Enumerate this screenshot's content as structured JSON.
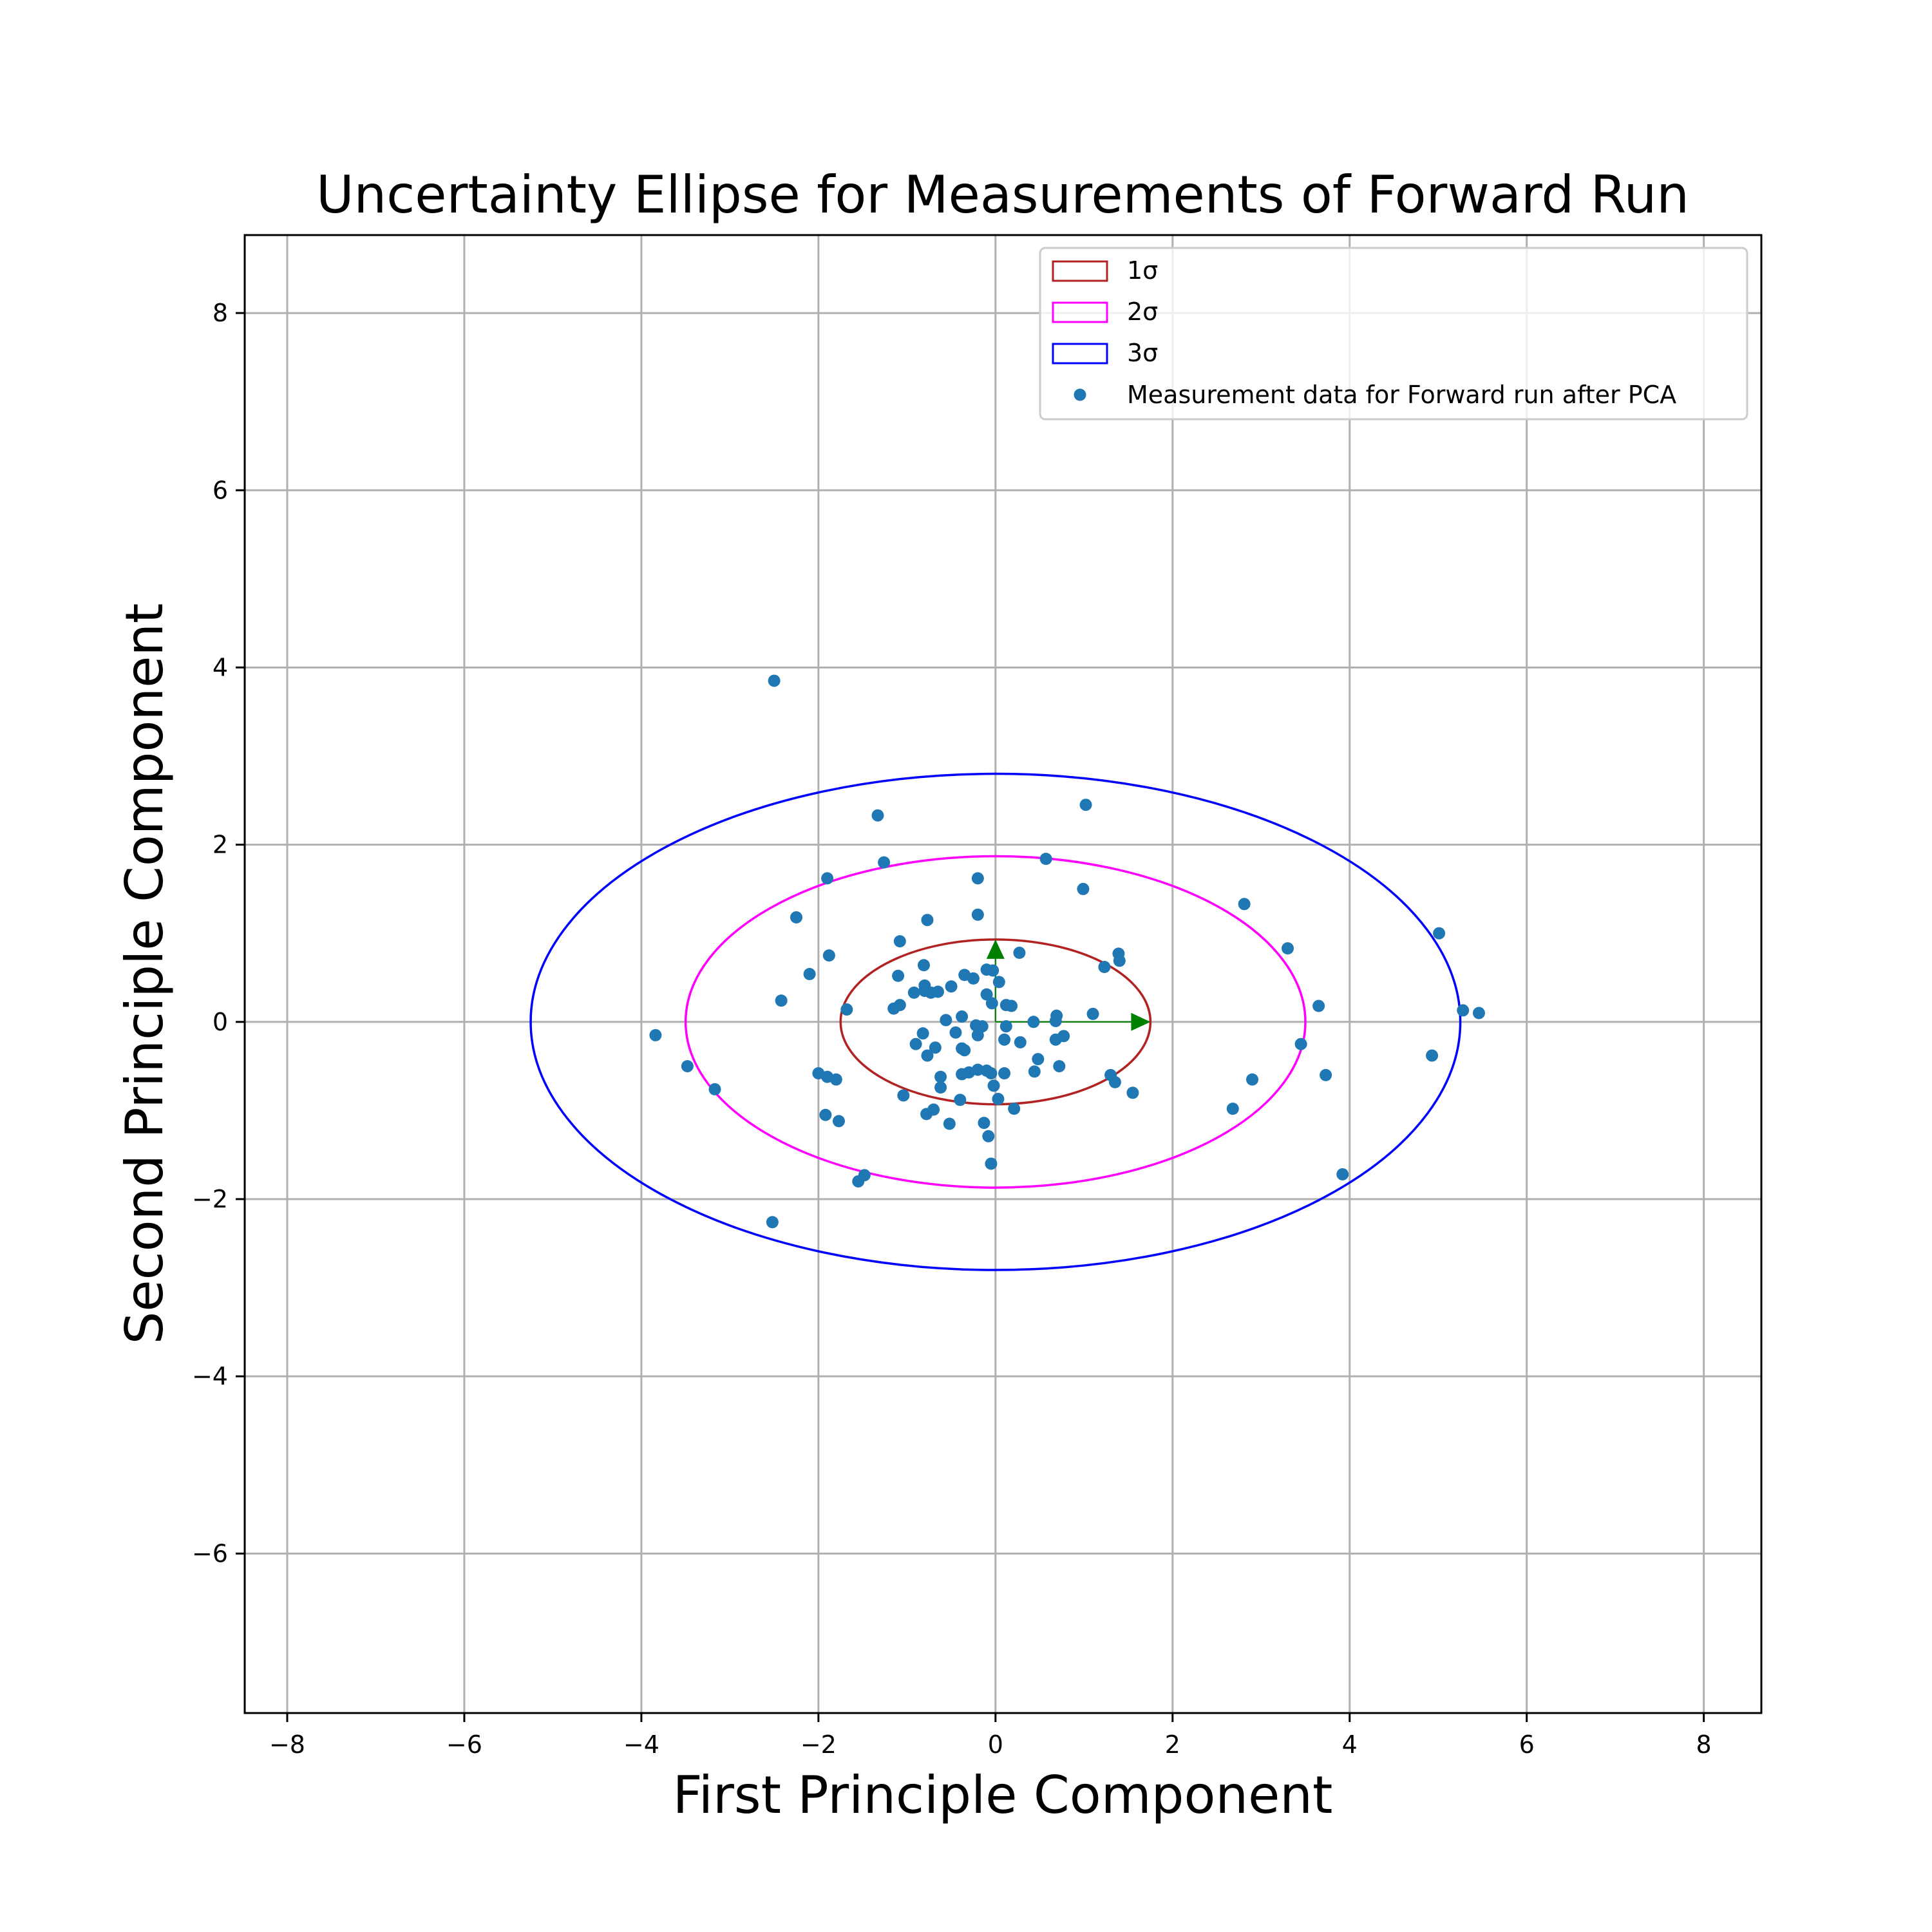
{
  "chart_data": {
    "type": "scatter",
    "title": "Uncertainty Ellipse for Measurements of Forward Run",
    "xlabel": "First Principle Component",
    "ylabel": "Second Principle Component",
    "xlim": [
      -8.48,
      8.65
    ],
    "ylim": [
      -7.8,
      8.88
    ],
    "xticks": [
      -8,
      -6,
      -4,
      -2,
      0,
      2,
      4,
      6,
      8
    ],
    "yticks": [
      -6,
      -4,
      -2,
      0,
      2,
      4,
      6,
      8
    ],
    "grid": true,
    "legend_position": "top-right",
    "colors": {
      "points": "#1f77b4",
      "ellipse_1sigma": "#b22222",
      "ellipse_2sigma": "#ff00ff",
      "ellipse_3sigma": "#0000ff",
      "arrows": "#008000",
      "grid": "#b0b0b0"
    },
    "ellipses": [
      {
        "label": "1σ",
        "center": [
          0,
          0
        ],
        "semi_x": 1.75,
        "semi_y": 0.93
      },
      {
        "label": "2σ",
        "center": [
          0,
          0
        ],
        "semi_x": 3.5,
        "semi_y": 1.87
      },
      {
        "label": "3σ",
        "center": [
          0,
          0
        ],
        "semi_x": 5.25,
        "semi_y": 2.8
      }
    ],
    "arrows": [
      {
        "from": [
          0,
          0
        ],
        "to": [
          1.75,
          0
        ]
      },
      {
        "from": [
          0,
          0
        ],
        "to": [
          0,
          0.93
        ]
      }
    ],
    "series": [
      {
        "name": "Measurement data for Forward run after PCA",
        "points": [
          [
            -2.5,
            3.85
          ],
          [
            -1.33,
            2.33
          ],
          [
            1.02,
            2.45
          ],
          [
            -1.26,
            1.8
          ],
          [
            0.57,
            1.84
          ],
          [
            -1.9,
            1.62
          ],
          [
            -0.2,
            1.62
          ],
          [
            0.99,
            1.5
          ],
          [
            2.81,
            1.33
          ],
          [
            -0.2,
            1.21
          ],
          [
            -2.25,
            1.18
          ],
          [
            -0.77,
            1.15
          ],
          [
            5.01,
            1.0
          ],
          [
            -1.08,
            0.91
          ],
          [
            3.3,
            0.83
          ],
          [
            1.39,
            0.77
          ],
          [
            -1.88,
            0.75
          ],
          [
            0.27,
            0.78
          ],
          [
            1.4,
            0.69
          ],
          [
            -0.81,
            0.64
          ],
          [
            1.23,
            0.62
          ],
          [
            -0.1,
            0.59
          ],
          [
            -0.03,
            0.58
          ],
          [
            -2.1,
            0.54
          ],
          [
            -1.1,
            0.52
          ],
          [
            -0.35,
            0.53
          ],
          [
            -0.25,
            0.49
          ],
          [
            0.04,
            0.45
          ],
          [
            -0.8,
            0.41
          ],
          [
            -0.5,
            0.4
          ],
          [
            -0.8,
            0.35
          ],
          [
            -0.65,
            0.34
          ],
          [
            -0.92,
            0.33
          ],
          [
            -0.73,
            0.33
          ],
          [
            -0.1,
            0.31
          ],
          [
            -2.42,
            0.24
          ],
          [
            -0.04,
            0.21
          ],
          [
            0.12,
            0.19
          ],
          [
            0.18,
            0.18
          ],
          [
            -1.08,
            0.19
          ],
          [
            -1.15,
            0.15
          ],
          [
            -1.68,
            0.14
          ],
          [
            3.65,
            0.18
          ],
          [
            5.28,
            0.13
          ],
          [
            5.46,
            0.1
          ],
          [
            1.1,
            0.09
          ],
          [
            0.69,
            0.07
          ],
          [
            -0.38,
            0.06
          ],
          [
            -0.56,
            0.02
          ],
          [
            0.43,
            0.0
          ],
          [
            0.68,
            0.01
          ],
          [
            -0.22,
            -0.04
          ],
          [
            0.12,
            -0.05
          ],
          [
            -0.15,
            -0.05
          ],
          [
            -0.45,
            -0.12
          ],
          [
            -0.82,
            -0.13
          ],
          [
            0.77,
            -0.16
          ],
          [
            -3.84,
            -0.15
          ],
          [
            -0.2,
            -0.15
          ],
          [
            0.1,
            -0.2
          ],
          [
            0.68,
            -0.2
          ],
          [
            -0.9,
            -0.25
          ],
          [
            0.28,
            -0.23
          ],
          [
            3.45,
            -0.25
          ],
          [
            -0.68,
            -0.29
          ],
          [
            -0.38,
            -0.3
          ],
          [
            -0.35,
            -0.32
          ],
          [
            -0.77,
            -0.38
          ],
          [
            0.48,
            -0.42
          ],
          [
            0.72,
            -0.5
          ],
          [
            -3.48,
            -0.5
          ],
          [
            -0.1,
            -0.55
          ],
          [
            -0.2,
            -0.54
          ],
          [
            -0.3,
            -0.57
          ],
          [
            -0.05,
            -0.58
          ],
          [
            0.44,
            -0.56
          ],
          [
            0.1,
            -0.58
          ],
          [
            -2.0,
            -0.58
          ],
          [
            -0.38,
            -0.59
          ],
          [
            1.3,
            -0.6
          ],
          [
            3.73,
            -0.6
          ],
          [
            -1.9,
            -0.62
          ],
          [
            -0.62,
            -0.62
          ],
          [
            2.9,
            -0.65
          ],
          [
            -1.8,
            -0.65
          ],
          [
            1.35,
            -0.68
          ],
          [
            -0.02,
            -0.72
          ],
          [
            -0.62,
            -0.74
          ],
          [
            1.55,
            -0.8
          ],
          [
            -3.17,
            -0.76
          ],
          [
            -1.04,
            -0.83
          ],
          [
            0.03,
            -0.87
          ],
          [
            -0.4,
            -0.88
          ],
          [
            -0.7,
            -0.99
          ],
          [
            0.21,
            -0.98
          ],
          [
            2.68,
            -0.98
          ],
          [
            -0.78,
            -1.04
          ],
          [
            -1.92,
            -1.05
          ],
          [
            -1.77,
            -1.12
          ],
          [
            -0.13,
            -1.14
          ],
          [
            -0.52,
            -1.15
          ],
          [
            -0.08,
            -1.29
          ],
          [
            4.93,
            -0.38
          ],
          [
            -0.05,
            -1.6
          ],
          [
            -1.48,
            -1.73
          ],
          [
            -1.55,
            -1.8
          ],
          [
            3.92,
            -1.72
          ],
          [
            -2.52,
            -2.26
          ]
        ]
      }
    ],
    "legend": [
      {
        "label": "1σ",
        "swatch": "rect"
      },
      {
        "label": "2σ",
        "swatch": "rect"
      },
      {
        "label": "3σ",
        "swatch": "rect"
      },
      {
        "label": "Measurement data for Forward run after PCA",
        "swatch": "dot"
      }
    ]
  }
}
